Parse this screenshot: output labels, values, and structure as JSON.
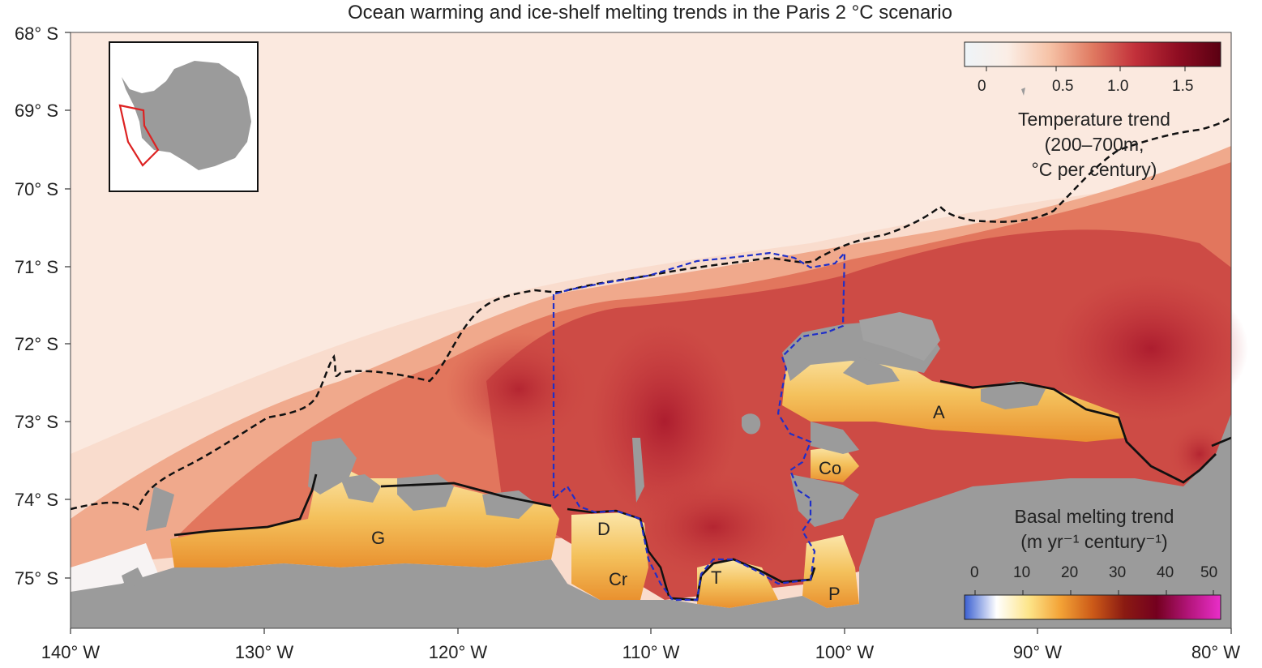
{
  "title": "Ocean warming and ice-shelf melting trends in the Paris 2 °C scenario",
  "latitude_labels": [
    "68° S",
    "69° S",
    "70° S",
    "71° S",
    "72° S",
    "73° S",
    "74° S",
    "75° S"
  ],
  "longitude_labels": [
    "140° W",
    "130° W",
    "120° W",
    "110° W",
    "100° W",
    "90° W",
    "80° W"
  ],
  "temperature_colorbar": {
    "ticks": [
      "0",
      "0.5",
      "1.0",
      "1.5"
    ],
    "label_lines": [
      "Temperature trend",
      "(200–700m,",
      "°C per century)"
    ],
    "colors": [
      "#eef4f8",
      "#fbeee6",
      "#f6c2a6",
      "#e07a61",
      "#c2303a",
      "#8f0d22",
      "#5a0012"
    ]
  },
  "melting_colorbar": {
    "ticks": [
      "0",
      "10",
      "20",
      "30",
      "40",
      "50"
    ],
    "label_lines": [
      "Basal melting trend",
      "(m yr⁻¹ century⁻¹)"
    ],
    "colors": [
      "#3a5fd1",
      "#ffffff",
      "#fde58a",
      "#f3a236",
      "#cc5a18",
      "#8a1a12",
      "#74001f",
      "#b3157a",
      "#e92ec9"
    ]
  },
  "ice_shelf_labels": [
    {
      "id": "G",
      "text": "G"
    },
    {
      "id": "D",
      "text": "D"
    },
    {
      "id": "Cr",
      "text": "Cr"
    },
    {
      "id": "T",
      "text": "T"
    },
    {
      "id": "P",
      "text": "P"
    },
    {
      "id": "Co",
      "text": "Co"
    },
    {
      "id": "A",
      "text": "A"
    }
  ],
  "colors": {
    "land": "#9b9b9b",
    "ice_shelf": "#f6cf73",
    "shelf_break_line": "#111111",
    "amundsen_box": "#2233cc",
    "inset_region": "#dd2222"
  }
}
